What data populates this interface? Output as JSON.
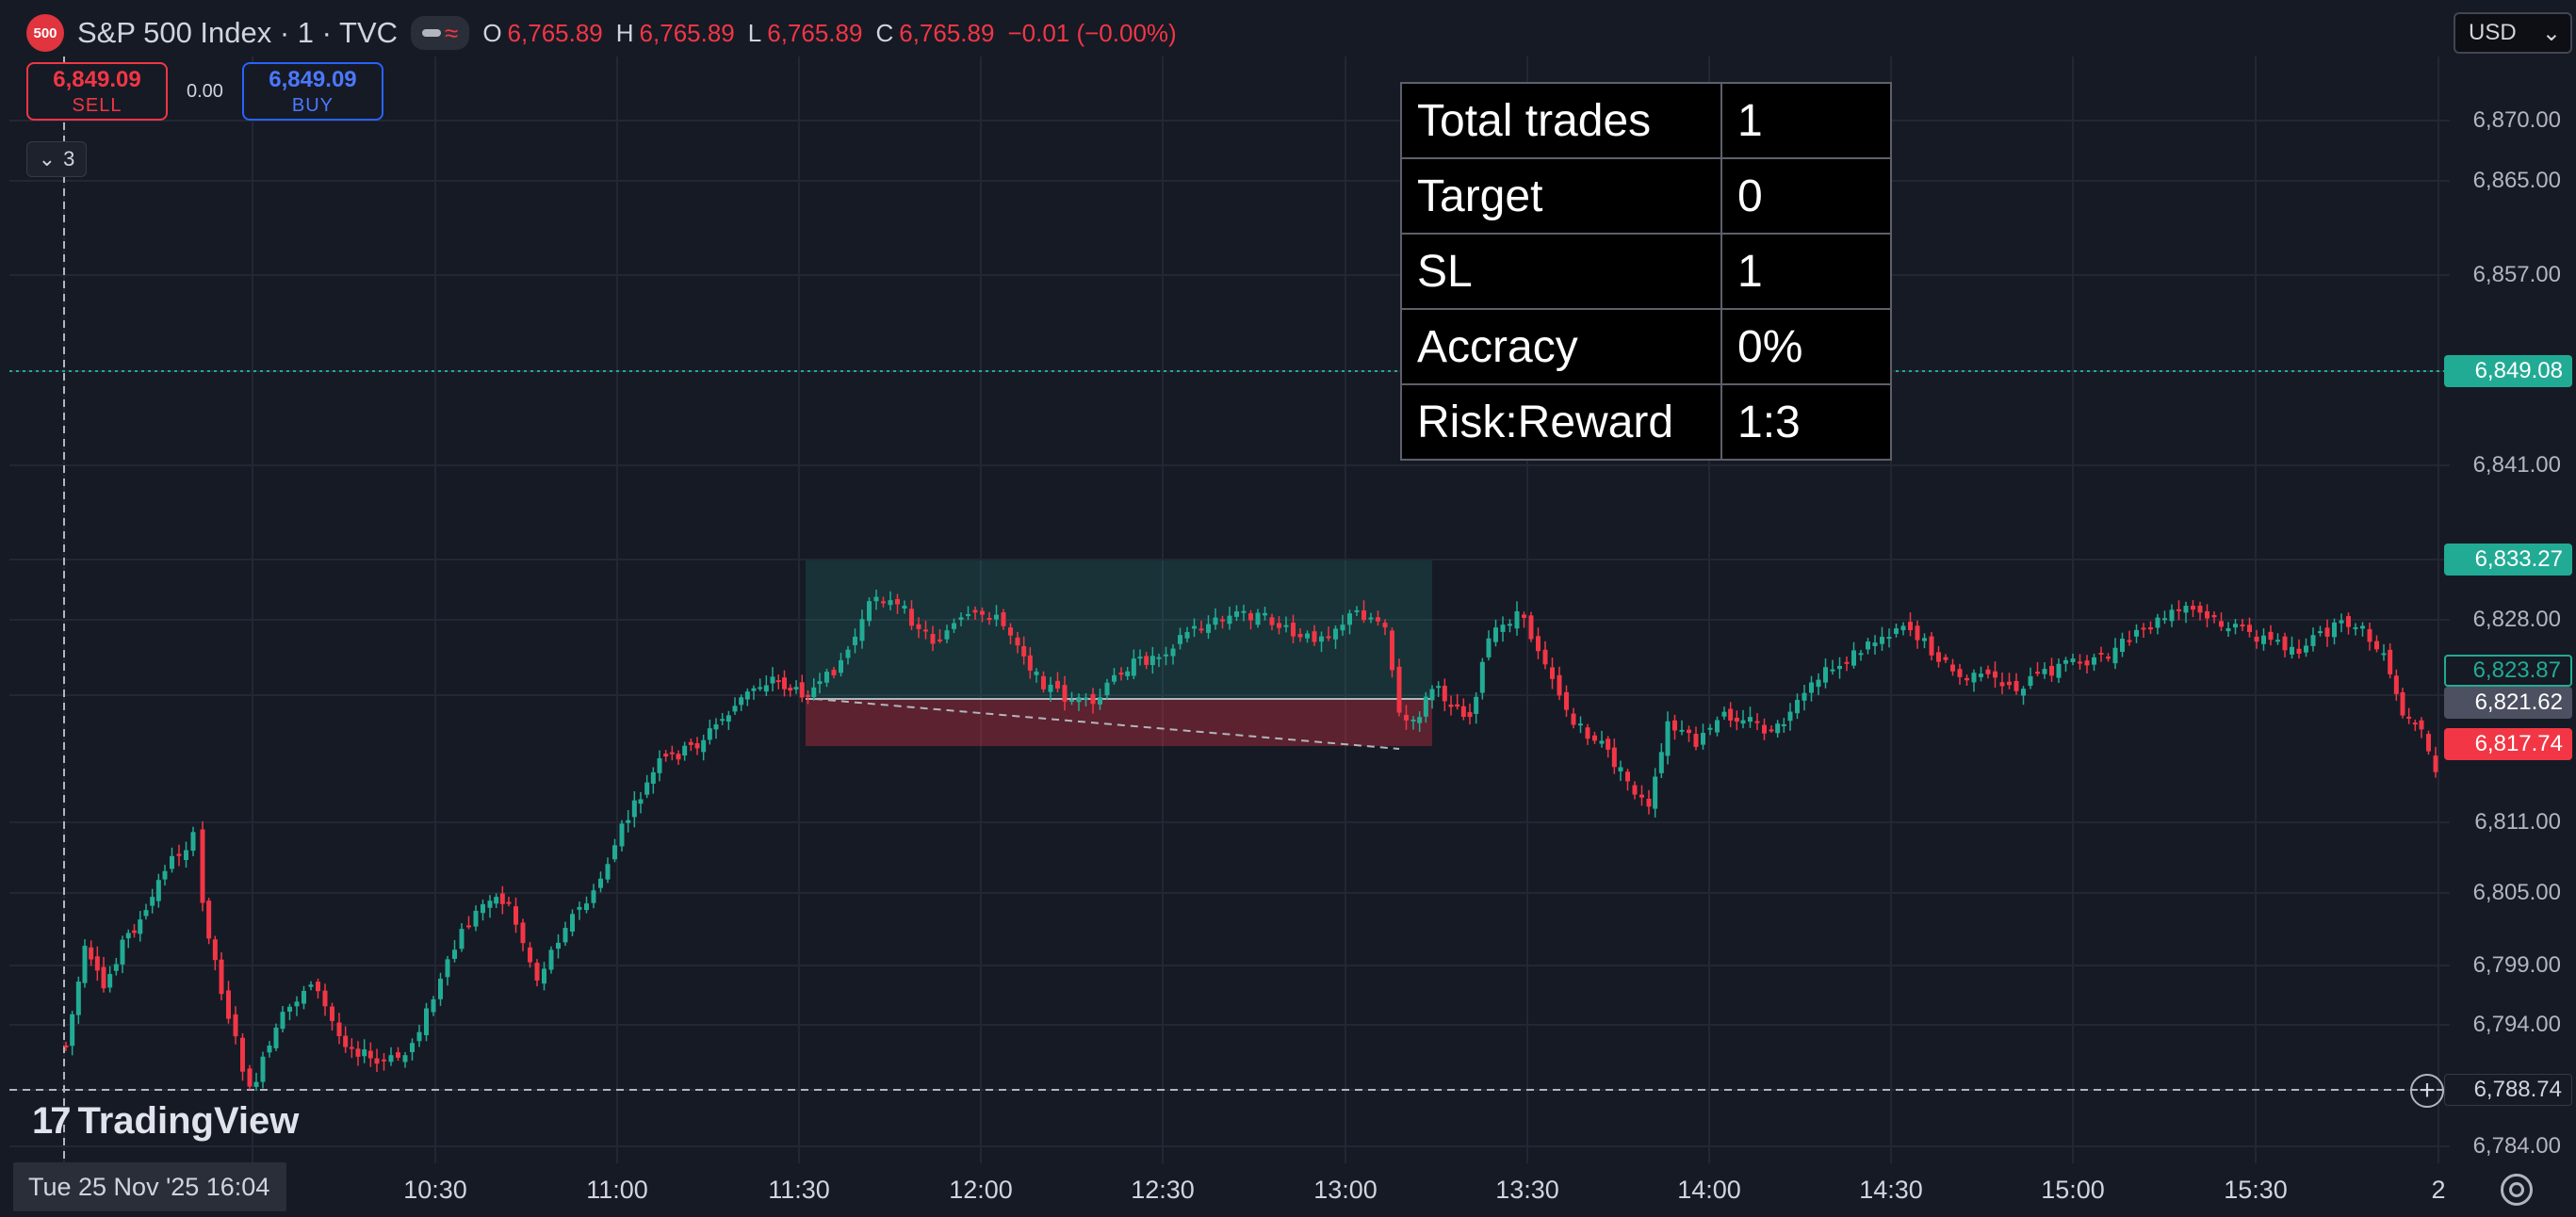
{
  "header": {
    "symbol_badge": "500",
    "title": "S&P 500 Index · 1 · TVC",
    "ohlc": [
      {
        "k": "O",
        "v": "6,765.89"
      },
      {
        "k": "H",
        "v": "6,765.89"
      },
      {
        "k": "L",
        "v": "6,765.89"
      },
      {
        "k": "C",
        "v": "6,765.89"
      }
    ],
    "change": "−0.01 (−0.00%)"
  },
  "trade": {
    "sell_price": "6,849.09",
    "sell_label": "SELL",
    "spread": "0.00",
    "buy_price": "6,849.09",
    "buy_label": "BUY"
  },
  "indicators_count": "3",
  "currency": "USD",
  "stats_table": [
    {
      "label": "Total trades",
      "value": "1"
    },
    {
      "label": "Target",
      "value": "0"
    },
    {
      "label": "SL",
      "value": "1"
    },
    {
      "label": "Accracy",
      "value": "0%"
    },
    {
      "label": "Risk:Reward",
      "value": "1:3"
    }
  ],
  "price_axis": [
    "6,870.00",
    "6,865.00",
    "6,857.00",
    "6,841.00",
    "6,828.00",
    "6,811.00",
    "6,805.00",
    "6,799.00",
    "6,794.00",
    "6,784.00"
  ],
  "price_tags": {
    "bid_line": "6,849.08",
    "target": "6,833.27",
    "last": "6,823.87",
    "entry": "6,821.62",
    "stop": "6,817.74",
    "crosshair": "6,788.74"
  },
  "time_axis": [
    "10:30",
    "11:00",
    "11:30",
    "12:00",
    "12:30",
    "13:00",
    "13:30",
    "14:00",
    "14:30",
    "15:00",
    "15:30",
    "2"
  ],
  "crosshair_date": "Tue 25 Nov '25   16:04",
  "brand": "TradingView",
  "colors": {
    "up": "#22ab94",
    "down": "#f23645",
    "background": "#161a25",
    "grid": "#232734"
  }
}
